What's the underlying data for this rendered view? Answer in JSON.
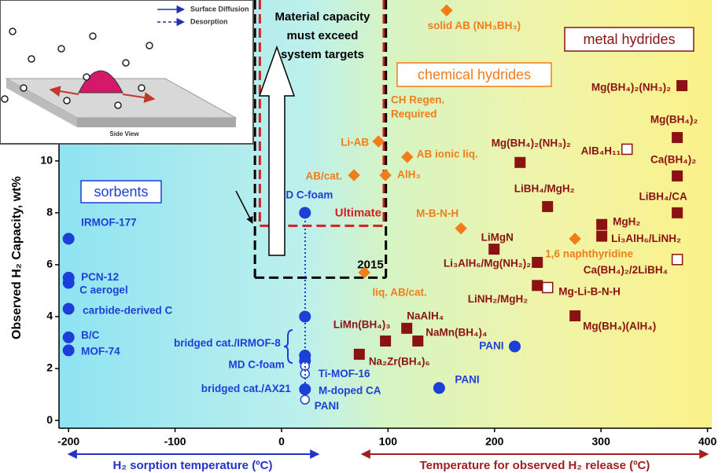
{
  "chart_data": {
    "type": "scatter",
    "y_label": "Observed H₂ Capacity, wt%",
    "x_label_sorption": "H₂ sorption temperature (ºC)",
    "x_label_release": "Temperature for observed H₂ release (ºC)",
    "xlim": [
      -209,
      404
    ],
    "ylim": [
      -0.3,
      16.2
    ],
    "xticks": [
      -200,
      -100,
      0,
      100,
      200,
      300,
      400
    ],
    "yticks": [
      0,
      2,
      4,
      6,
      8,
      10
    ],
    "series": [
      {
        "name": "sorbents",
        "color": "#1c3fd8",
        "marker": "circle",
        "points": [
          {
            "label": "IRMOF-177",
            "x": -200,
            "y": 7.0
          },
          {
            "label": "PCN-12",
            "x": -200,
            "y": 5.5
          },
          {
            "label": "C aerogel",
            "x": -200,
            "y": 5.3
          },
          {
            "label": "carbide-derived C",
            "x": -200,
            "y": 4.3
          },
          {
            "label": "B/C",
            "x": -200,
            "y": 3.2
          },
          {
            "label": "MOF-74",
            "x": -200,
            "y": 2.7
          },
          {
            "label": "MD C-foam",
            "x": 22,
            "y": 8.0
          },
          {
            "x": 22,
            "y": 4.0
          },
          {
            "label": "bridged cat./IRMOF-8",
            "x": 22,
            "y": 2.5
          },
          {
            "label": "MD C-foam",
            "x": 22,
            "y": 2.3
          },
          {
            "x": 22,
            "y": 2.1,
            "open": true
          },
          {
            "label": "Ti-MOF-16",
            "x": 22,
            "y": 1.8,
            "open": true
          },
          {
            "label": "bridged cat./AX21",
            "x": 22,
            "y": 1.2
          },
          {
            "label": "PANI",
            "x": 22,
            "y": 0.8,
            "open": true
          },
          {
            "label": "PANI",
            "x": 148,
            "y": 1.25
          },
          {
            "label": "PANI",
            "x": 219,
            "y": 2.85
          }
        ]
      },
      {
        "name": "chemical hydrides",
        "color": "#f07d1a",
        "marker": "diamond",
        "points": [
          {
            "label": "solid AB (NH₃BH₃)",
            "x": 155,
            "y": 15.8
          },
          {
            "label": "Li-AB",
            "x": 91,
            "y": 10.75
          },
          {
            "label": "AB ionic liq.",
            "x": 118,
            "y": 10.15
          },
          {
            "label": "AB/cat.",
            "x": 68,
            "y": 9.45
          },
          {
            "label": "AlH₃",
            "x": 97.6,
            "y": 9.45
          },
          {
            "label": "M-B-N-H",
            "x": 168.5,
            "y": 7.4
          },
          {
            "label": "liq. AB/cat.",
            "x": 77.7,
            "y": 5.7
          },
          {
            "label": "1,6 naphthyridine",
            "x": 275.6,
            "y": 7.0
          }
        ]
      },
      {
        "name": "metal hydrides",
        "color": "#8b1212",
        "marker": "square",
        "points": [
          {
            "label": "Mg(BH₄)₂(NH₃)₂",
            "x": 376,
            "y": 12.9
          },
          {
            "label": "Mg(BH₄)₂",
            "x": 371.6,
            "y": 10.9
          },
          {
            "label": "AlB₄H₁₁",
            "x": 324.4,
            "y": 10.45,
            "open": true
          },
          {
            "label": "Ca(BH₄)₂",
            "x": 371.6,
            "y": 9.42
          },
          {
            "label": "Mg(BH₄)₂(NH₃)₂",
            "x": 224,
            "y": 9.94
          },
          {
            "label": "LiBH₄/MgH₂",
            "x": 249.8,
            "y": 8.24
          },
          {
            "label": "LiBH₄/CA",
            "x": 371.6,
            "y": 8.0
          },
          {
            "label": "MgH₂",
            "x": 300.7,
            "y": 7.55
          },
          {
            "label": "Li₃AlH₆/LiNH₂",
            "x": 300.7,
            "y": 7.1
          },
          {
            "label": "LiMgN",
            "x": 199.6,
            "y": 6.6
          },
          {
            "label": "Li₃AlH₆/Mg(NH₂)₂",
            "x": 240.2,
            "y": 6.09
          },
          {
            "label": "Ca(BH₄)₂/2LiBH₄",
            "x": 371.6,
            "y": 6.2,
            "open": true
          },
          {
            "label": "LiNH₂/MgH₂",
            "x": 240.2,
            "y": 5.2
          },
          {
            "label": "Mg-Li-B-N-H",
            "x": 249.8,
            "y": 5.12,
            "open": true
          },
          {
            "label": "Mg(BH₄)(AlH₄)",
            "x": 275.6,
            "y": 4.03
          },
          {
            "label": "LiMn(BH₄)₃",
            "x": 97.6,
            "y": 3.06
          },
          {
            "label": "NaAlH₄",
            "x": 117.6,
            "y": 3.55
          },
          {
            "label": "NaMn(BH₄)₄",
            "x": 128,
            "y": 3.06
          },
          {
            "label": "Na₂Zr(BH₄)₆",
            "x": 73,
            "y": 2.55
          }
        ]
      }
    ],
    "targets": [
      {
        "label": "Ultimate",
        "value": 7.5,
        "xrange": [
          -20.4,
          96
        ],
        "color": "#d42020"
      },
      {
        "label": "2015",
        "value": 5.5,
        "xrange": [
          -25,
          98
        ],
        "color": "#000000"
      }
    ],
    "target_note": [
      "Material capacity",
      "must exceed",
      "system targets"
    ],
    "regen_note": [
      "CH Regen.",
      "Required"
    ],
    "extra_label": "M-doped CA",
    "inset": {
      "legend": [
        "Surface Diffusion",
        "Desorption"
      ],
      "caption": "Side View"
    }
  }
}
